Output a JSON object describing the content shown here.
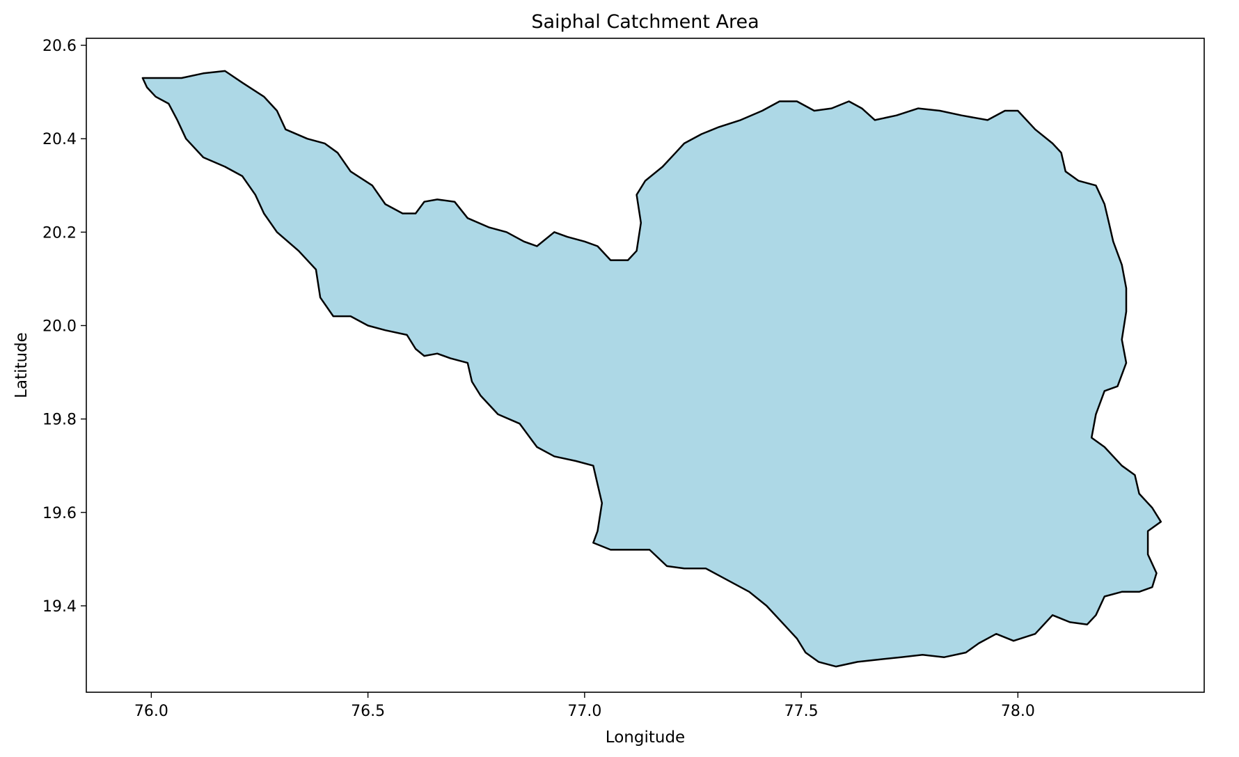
{
  "chart_data": {
    "type": "map",
    "title": "Saiphal Catchment Area",
    "xlabel": "Longitude",
    "ylabel": "Latitude",
    "xlim": [
      75.85,
      78.43
    ],
    "ylim": [
      19.215,
      20.615
    ],
    "x_ticks": [
      76.0,
      76.5,
      77.0,
      77.5,
      78.0
    ],
    "x_tick_labels": [
      "76.0",
      "76.5",
      "77.0",
      "77.5",
      "78.0"
    ],
    "y_ticks": [
      19.4,
      19.6,
      19.8,
      20.0,
      20.2,
      20.4,
      20.6
    ],
    "y_tick_labels": [
      "19.4",
      "19.6",
      "19.8",
      "20.0",
      "20.2",
      "20.4",
      "20.6"
    ],
    "grid": false,
    "legend": "none",
    "fill_color": "#add8e6",
    "edge_color": "#000000",
    "region": {
      "name": "Saiphal",
      "boundary": [
        [
          75.98,
          20.53
        ],
        [
          76.02,
          20.53
        ],
        [
          76.07,
          20.53
        ],
        [
          76.12,
          20.54
        ],
        [
          76.17,
          20.545
        ],
        [
          76.21,
          20.52
        ],
        [
          76.26,
          20.49
        ],
        [
          76.29,
          20.46
        ],
        [
          76.31,
          20.42
        ],
        [
          76.36,
          20.4
        ],
        [
          76.4,
          20.39
        ],
        [
          76.43,
          20.37
        ],
        [
          76.46,
          20.33
        ],
        [
          76.51,
          20.3
        ],
        [
          76.54,
          20.26
        ],
        [
          76.58,
          20.24
        ],
        [
          76.61,
          20.24
        ],
        [
          76.63,
          20.265
        ],
        [
          76.66,
          20.27
        ],
        [
          76.7,
          20.265
        ],
        [
          76.73,
          20.23
        ],
        [
          76.78,
          20.21
        ],
        [
          76.82,
          20.2
        ],
        [
          76.86,
          20.18
        ],
        [
          76.89,
          20.17
        ],
        [
          76.93,
          20.2
        ],
        [
          76.96,
          20.19
        ],
        [
          77.0,
          20.18
        ],
        [
          77.03,
          20.17
        ],
        [
          77.06,
          20.14
        ],
        [
          77.1,
          20.14
        ],
        [
          77.12,
          20.16
        ],
        [
          77.13,
          20.22
        ],
        [
          77.12,
          20.28
        ],
        [
          77.14,
          20.31
        ],
        [
          77.18,
          20.34
        ],
        [
          77.21,
          20.37
        ],
        [
          77.23,
          20.39
        ],
        [
          77.27,
          20.41
        ],
        [
          77.31,
          20.425
        ],
        [
          77.36,
          20.44
        ],
        [
          77.41,
          20.46
        ],
        [
          77.45,
          20.48
        ],
        [
          77.49,
          20.48
        ],
        [
          77.53,
          20.46
        ],
        [
          77.57,
          20.465
        ],
        [
          77.61,
          20.48
        ],
        [
          77.64,
          20.465
        ],
        [
          77.67,
          20.44
        ],
        [
          77.72,
          20.45
        ],
        [
          77.77,
          20.465
        ],
        [
          77.82,
          20.46
        ],
        [
          77.87,
          20.45
        ],
        [
          77.93,
          20.44
        ],
        [
          77.97,
          20.46
        ],
        [
          78.0,
          20.46
        ],
        [
          78.04,
          20.42
        ],
        [
          78.08,
          20.39
        ],
        [
          78.1,
          20.37
        ],
        [
          78.11,
          20.33
        ],
        [
          78.14,
          20.31
        ],
        [
          78.18,
          20.3
        ],
        [
          78.2,
          20.26
        ],
        [
          78.21,
          20.22
        ],
        [
          78.22,
          20.18
        ],
        [
          78.24,
          20.13
        ],
        [
          78.25,
          20.08
        ],
        [
          78.25,
          20.03
        ],
        [
          78.24,
          19.97
        ],
        [
          78.25,
          19.92
        ],
        [
          78.23,
          19.87
        ],
        [
          78.2,
          19.86
        ],
        [
          78.18,
          19.81
        ],
        [
          78.17,
          19.76
        ],
        [
          78.2,
          19.74
        ],
        [
          78.24,
          19.7
        ],
        [
          78.27,
          19.68
        ],
        [
          78.28,
          19.64
        ],
        [
          78.31,
          19.61
        ],
        [
          78.33,
          19.58
        ],
        [
          78.3,
          19.56
        ],
        [
          78.3,
          19.51
        ],
        [
          78.32,
          19.47
        ],
        [
          78.31,
          19.44
        ],
        [
          78.28,
          19.43
        ],
        [
          78.24,
          19.43
        ],
        [
          78.2,
          19.42
        ],
        [
          78.18,
          19.38
        ],
        [
          78.16,
          19.36
        ],
        [
          78.12,
          19.365
        ],
        [
          78.08,
          19.38
        ],
        [
          78.04,
          19.34
        ],
        [
          77.99,
          19.325
        ],
        [
          77.95,
          19.34
        ],
        [
          77.91,
          19.32
        ],
        [
          77.88,
          19.3
        ],
        [
          77.83,
          19.29
        ],
        [
          77.78,
          19.295
        ],
        [
          77.73,
          19.29
        ],
        [
          77.68,
          19.285
        ],
        [
          77.63,
          19.28
        ],
        [
          77.58,
          19.27
        ],
        [
          77.54,
          19.28
        ],
        [
          77.51,
          19.3
        ],
        [
          77.49,
          19.33
        ],
        [
          77.46,
          19.36
        ],
        [
          77.42,
          19.4
        ],
        [
          77.38,
          19.43
        ],
        [
          77.32,
          19.46
        ],
        [
          77.28,
          19.48
        ],
        [
          77.23,
          19.48
        ],
        [
          77.19,
          19.485
        ],
        [
          77.15,
          19.52
        ],
        [
          77.11,
          19.52
        ],
        [
          77.06,
          19.52
        ],
        [
          77.02,
          19.535
        ],
        [
          77.03,
          19.56
        ],
        [
          77.04,
          19.62
        ],
        [
          77.03,
          19.66
        ],
        [
          77.02,
          19.7
        ],
        [
          76.98,
          19.71
        ],
        [
          76.93,
          19.72
        ],
        [
          76.89,
          19.74
        ],
        [
          76.85,
          19.79
        ],
        [
          76.8,
          19.81
        ],
        [
          76.76,
          19.85
        ],
        [
          76.74,
          19.88
        ],
        [
          76.73,
          19.92
        ],
        [
          76.69,
          19.93
        ],
        [
          76.66,
          19.94
        ],
        [
          76.63,
          19.935
        ],
        [
          76.61,
          19.95
        ],
        [
          76.59,
          19.98
        ],
        [
          76.54,
          19.99
        ],
        [
          76.5,
          20.0
        ],
        [
          76.46,
          20.02
        ],
        [
          76.42,
          20.02
        ],
        [
          76.39,
          20.06
        ],
        [
          76.38,
          20.12
        ],
        [
          76.34,
          20.16
        ],
        [
          76.29,
          20.2
        ],
        [
          76.26,
          20.24
        ],
        [
          76.24,
          20.28
        ],
        [
          76.21,
          20.32
        ],
        [
          76.17,
          20.34
        ],
        [
          76.12,
          20.36
        ],
        [
          76.08,
          20.4
        ],
        [
          76.06,
          20.44
        ],
        [
          76.04,
          20.475
        ],
        [
          76.01,
          20.49
        ],
        [
          75.99,
          20.51
        ]
      ]
    }
  }
}
